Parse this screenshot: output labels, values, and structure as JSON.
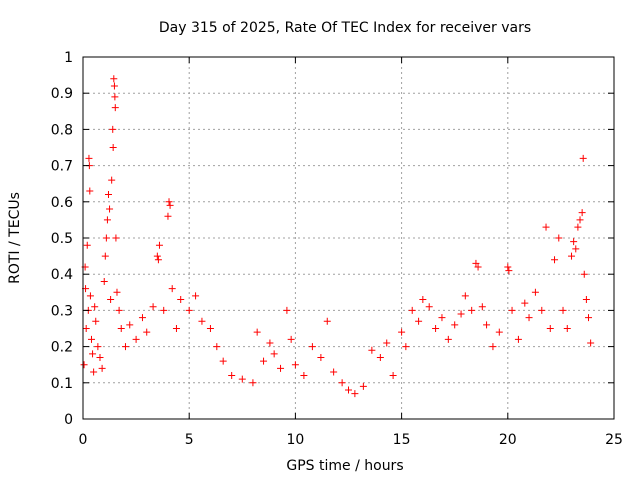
{
  "chart_data": {
    "type": "scatter",
    "title": "Day 315 of 2025, Rate Of TEC Index for receiver vars",
    "xlabel": "GPS time / hours",
    "ylabel": "ROTI / TECUs",
    "xlim": [
      0,
      25
    ],
    "ylim": [
      0,
      1
    ],
    "xticks": [
      "0",
      "5",
      "10",
      "15",
      "20",
      "25"
    ],
    "yticks": [
      "0",
      "0.1",
      "0.2",
      "0.3",
      "0.4",
      "0.5",
      "0.6",
      "0.7",
      "0.8",
      "0.9",
      "1"
    ],
    "grid": true,
    "marker": "plus",
    "color": "#ff0000",
    "series": [
      {
        "points": [
          [
            0.05,
            0.15
          ],
          [
            0.1,
            0.42
          ],
          [
            0.12,
            0.36
          ],
          [
            0.15,
            0.25
          ],
          [
            0.2,
            0.48
          ],
          [
            0.25,
            0.3
          ],
          [
            0.28,
            0.72
          ],
          [
            0.3,
            0.7
          ],
          [
            0.32,
            0.63
          ],
          [
            0.35,
            0.34
          ],
          [
            0.4,
            0.22
          ],
          [
            0.45,
            0.18
          ],
          [
            0.5,
            0.13
          ],
          [
            0.55,
            0.31
          ],
          [
            0.6,
            0.27
          ],
          [
            0.7,
            0.2
          ],
          [
            0.8,
            0.17
          ],
          [
            0.9,
            0.14
          ],
          [
            1.0,
            0.38
          ],
          [
            1.05,
            0.45
          ],
          [
            1.1,
            0.5
          ],
          [
            1.15,
            0.55
          ],
          [
            1.2,
            0.62
          ],
          [
            1.25,
            0.58
          ],
          [
            1.3,
            0.33
          ],
          [
            1.35,
            0.66
          ],
          [
            1.4,
            0.8
          ],
          [
            1.42,
            0.75
          ],
          [
            1.45,
            0.94
          ],
          [
            1.48,
            0.92
          ],
          [
            1.5,
            0.89
          ],
          [
            1.52,
            0.86
          ],
          [
            1.55,
            0.5
          ],
          [
            1.6,
            0.35
          ],
          [
            1.7,
            0.3
          ],
          [
            1.8,
            0.25
          ],
          [
            2.0,
            0.2
          ],
          [
            2.2,
            0.26
          ],
          [
            2.5,
            0.22
          ],
          [
            2.8,
            0.28
          ],
          [
            3.0,
            0.24
          ],
          [
            3.3,
            0.31
          ],
          [
            3.5,
            0.45
          ],
          [
            3.55,
            0.44
          ],
          [
            3.6,
            0.48
          ],
          [
            3.8,
            0.3
          ],
          [
            4.0,
            0.56
          ],
          [
            4.05,
            0.6
          ],
          [
            4.1,
            0.59
          ],
          [
            4.2,
            0.36
          ],
          [
            4.4,
            0.25
          ],
          [
            4.6,
            0.33
          ],
          [
            5.0,
            0.3
          ],
          [
            5.3,
            0.34
          ],
          [
            5.6,
            0.27
          ],
          [
            6.0,
            0.25
          ],
          [
            6.3,
            0.2
          ],
          [
            6.6,
            0.16
          ],
          [
            7.0,
            0.12
          ],
          [
            7.5,
            0.11
          ],
          [
            8.0,
            0.1
          ],
          [
            8.2,
            0.24
          ],
          [
            8.5,
            0.16
          ],
          [
            8.8,
            0.21
          ],
          [
            9.0,
            0.18
          ],
          [
            9.3,
            0.14
          ],
          [
            9.6,
            0.3
          ],
          [
            9.8,
            0.22
          ],
          [
            10.0,
            0.15
          ],
          [
            10.4,
            0.12
          ],
          [
            10.8,
            0.2
          ],
          [
            11.2,
            0.17
          ],
          [
            11.5,
            0.27
          ],
          [
            11.8,
            0.13
          ],
          [
            12.2,
            0.1
          ],
          [
            12.5,
            0.08
          ],
          [
            12.8,
            0.07
          ],
          [
            13.2,
            0.09
          ],
          [
            13.6,
            0.19
          ],
          [
            14.0,
            0.17
          ],
          [
            14.3,
            0.21
          ],
          [
            14.6,
            0.12
          ],
          [
            15.0,
            0.24
          ],
          [
            15.2,
            0.2
          ],
          [
            15.5,
            0.3
          ],
          [
            15.8,
            0.27
          ],
          [
            16.0,
            0.33
          ],
          [
            16.3,
            0.31
          ],
          [
            16.6,
            0.25
          ],
          [
            16.9,
            0.28
          ],
          [
            17.2,
            0.22
          ],
          [
            17.5,
            0.26
          ],
          [
            17.8,
            0.29
          ],
          [
            18.0,
            0.34
          ],
          [
            18.3,
            0.3
          ],
          [
            18.5,
            0.43
          ],
          [
            18.6,
            0.42
          ],
          [
            18.8,
            0.31
          ],
          [
            19.0,
            0.26
          ],
          [
            19.3,
            0.2
          ],
          [
            19.6,
            0.24
          ],
          [
            20.0,
            0.42
          ],
          [
            20.05,
            0.41
          ],
          [
            20.2,
            0.3
          ],
          [
            20.5,
            0.22
          ],
          [
            20.8,
            0.32
          ],
          [
            21.0,
            0.28
          ],
          [
            21.3,
            0.35
          ],
          [
            21.6,
            0.3
          ],
          [
            21.8,
            0.53
          ],
          [
            22.0,
            0.25
          ],
          [
            22.2,
            0.44
          ],
          [
            22.4,
            0.5
          ],
          [
            22.6,
            0.3
          ],
          [
            22.8,
            0.25
          ],
          [
            23.0,
            0.45
          ],
          [
            23.1,
            0.49
          ],
          [
            23.2,
            0.47
          ],
          [
            23.3,
            0.53
          ],
          [
            23.4,
            0.55
          ],
          [
            23.5,
            0.57
          ],
          [
            23.55,
            0.72
          ],
          [
            23.6,
            0.4
          ],
          [
            23.7,
            0.33
          ],
          [
            23.8,
            0.28
          ],
          [
            23.9,
            0.21
          ]
        ]
      }
    ]
  }
}
